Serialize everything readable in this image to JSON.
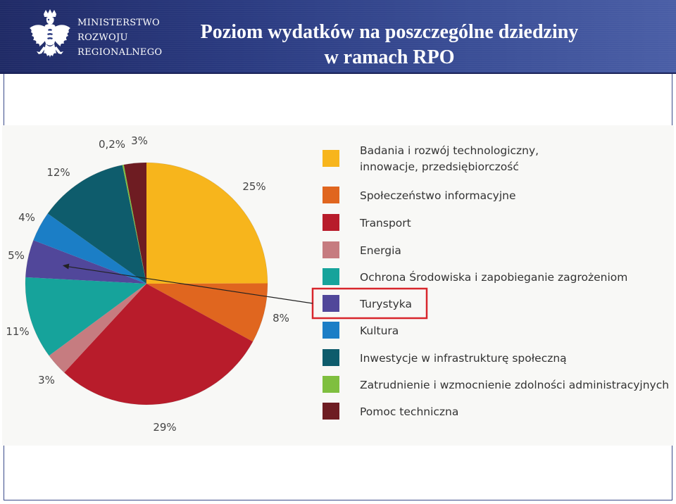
{
  "header": {
    "logo_lines": [
      "MINISTERSTWO",
      "ROZWOJU",
      "REGIONALNEGO"
    ],
    "title_line1": "Poziom wydatków na poszczególne dziedziny",
    "title_line2": "w ramach RPO"
  },
  "chart_data": {
    "type": "pie",
    "title": "Poziom wydatków na poszczególne dziedziny w ramach RPO",
    "unit": "%",
    "start": "12 o'clock",
    "direction": "clockwise",
    "highlighted": "Turystyka",
    "slices": [
      {
        "label": "Badania i rozwój technologiczny, innowacje, przedsiębiorczość",
        "legend_lines": [
          "Badania i rozwój technologiczny,",
          "innowacje, przedsiębiorczość"
        ],
        "value": 25,
        "value_label": "25%",
        "color": "#f7b51c"
      },
      {
        "label": "Społeczeństwo informacyjne",
        "legend_lines": [
          "Społeczeństwo informacyjne"
        ],
        "value": 8,
        "value_label": "8%",
        "color": "#e0661f"
      },
      {
        "label": "Transport",
        "legend_lines": [
          "Transport"
        ],
        "value": 29,
        "value_label": "29%",
        "color": "#b81c2b"
      },
      {
        "label": "Energia",
        "legend_lines": [
          "Energia"
        ],
        "value": 3,
        "value_label": "3%",
        "color": "#c67c80"
      },
      {
        "label": "Ochrona Środowiska i zapobieganie zagrożeniom",
        "legend_lines": [
          "Ochrona Środowiska i zapobieganie zagrożeniom"
        ],
        "value": 11,
        "value_label": "11%",
        "color": "#16a39b"
      },
      {
        "label": "Turystyka",
        "legend_lines": [
          "Turystyka"
        ],
        "value": 5,
        "value_label": "5%",
        "color": "#51479a"
      },
      {
        "label": "Kultura",
        "legend_lines": [
          "Kultura"
        ],
        "value": 4,
        "value_label": "4%",
        "color": "#1b7ec6"
      },
      {
        "label": "Inwestycje w infrastrukturę społeczną",
        "legend_lines": [
          "Inwestycje w infrastrukturę społeczną"
        ],
        "value": 12,
        "value_label": "12%",
        "color": "#0e5c6c"
      },
      {
        "label": "Zatrudnienie i wzmocnienie zdolności administracyjnych",
        "legend_lines": [
          "Zatrudnienie i wzmocnienie zdolności administracyjnych"
        ],
        "value": 0.2,
        "value_label": "0,2%",
        "color": "#7fbf3f"
      },
      {
        "label": "Pomoc techniczna",
        "legend_lines": [
          "Pomoc techniczna"
        ],
        "value": 3,
        "value_label": "3%",
        "color": "#6e1c22"
      }
    ]
  },
  "colors": {
    "header_dark": "#1f2a66",
    "header_light": "#4a5ea6",
    "highlight_box": "#d8262c",
    "pointer_line": "#222222"
  }
}
